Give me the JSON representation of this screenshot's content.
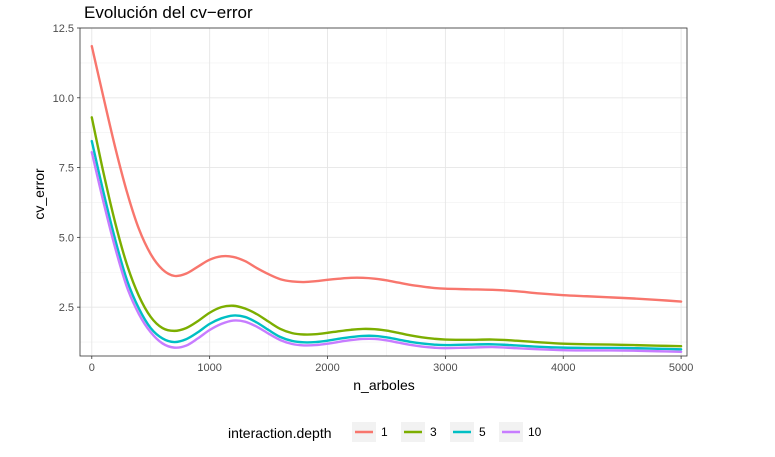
{
  "chart_data": {
    "type": "line",
    "title": "Evolución del cv−error",
    "xlabel": "n_arboles",
    "ylabel": "cv_error",
    "xlim": [
      -100,
      5050
    ],
    "ylim": [
      0.75,
      12.5
    ],
    "x_ticks": [
      0,
      1000,
      2000,
      3000,
      4000,
      5000
    ],
    "x_tick_labels": [
      "0",
      "1000",
      "2000",
      "3000",
      "4000",
      "5000"
    ],
    "y_ticks": [
      2.5,
      5.0,
      7.5,
      10.0,
      12.5
    ],
    "y_tick_labels": [
      "2.5",
      "5.0",
      "7.5",
      "10.0",
      "12.5"
    ],
    "grid": true,
    "legend": {
      "title": "interaction.depth",
      "placement": "bottom"
    },
    "x": [
      0,
      100,
      200,
      300,
      400,
      500,
      600,
      700,
      800,
      900,
      1000,
      1100,
      1200,
      1300,
      1400,
      1500,
      1600,
      1700,
      1800,
      1900,
      2000,
      2100,
      2200,
      2300,
      2400,
      2500,
      2600,
      2700,
      2800,
      2900,
      3000,
      3200,
      3400,
      3600,
      3800,
      4000,
      4200,
      4400,
      4600,
      4800,
      5000
    ],
    "series": [
      {
        "name": "1",
        "color": "#F8766D",
        "values": [
          11.85,
          10.0,
          8.2,
          6.6,
          5.3,
          4.4,
          3.85,
          3.62,
          3.7,
          3.95,
          4.2,
          4.32,
          4.3,
          4.15,
          3.9,
          3.68,
          3.5,
          3.42,
          3.4,
          3.43,
          3.48,
          3.52,
          3.55,
          3.55,
          3.52,
          3.46,
          3.38,
          3.3,
          3.24,
          3.19,
          3.16,
          3.14,
          3.12,
          3.07,
          2.99,
          2.93,
          2.89,
          2.85,
          2.81,
          2.76,
          2.7
        ]
      },
      {
        "name": "3",
        "color": "#7CAE00",
        "values": [
          9.3,
          7.3,
          5.5,
          4.0,
          2.9,
          2.15,
          1.75,
          1.65,
          1.75,
          2.0,
          2.3,
          2.5,
          2.55,
          2.45,
          2.25,
          1.98,
          1.72,
          1.57,
          1.52,
          1.53,
          1.58,
          1.64,
          1.69,
          1.72,
          1.71,
          1.66,
          1.58,
          1.49,
          1.42,
          1.37,
          1.34,
          1.33,
          1.34,
          1.3,
          1.24,
          1.19,
          1.17,
          1.16,
          1.14,
          1.12,
          1.1
        ]
      },
      {
        "name": "5",
        "color": "#00BFC4",
        "values": [
          8.45,
          6.6,
          4.9,
          3.45,
          2.45,
          1.75,
          1.38,
          1.25,
          1.35,
          1.6,
          1.9,
          2.1,
          2.2,
          2.15,
          1.95,
          1.68,
          1.43,
          1.29,
          1.24,
          1.25,
          1.3,
          1.37,
          1.43,
          1.47,
          1.47,
          1.42,
          1.34,
          1.26,
          1.2,
          1.16,
          1.14,
          1.16,
          1.17,
          1.13,
          1.08,
          1.05,
          1.04,
          1.04,
          1.03,
          1.01,
          0.99
        ]
      },
      {
        "name": "10",
        "color": "#C77CFF",
        "values": [
          8.05,
          6.25,
          4.6,
          3.2,
          2.25,
          1.6,
          1.2,
          1.05,
          1.12,
          1.38,
          1.68,
          1.9,
          2.02,
          1.98,
          1.8,
          1.55,
          1.32,
          1.18,
          1.13,
          1.14,
          1.19,
          1.26,
          1.32,
          1.36,
          1.36,
          1.31,
          1.23,
          1.15,
          1.09,
          1.05,
          1.03,
          1.05,
          1.07,
          1.03,
          0.99,
          0.96,
          0.95,
          0.95,
          0.94,
          0.92,
          0.9
        ]
      }
    ]
  }
}
